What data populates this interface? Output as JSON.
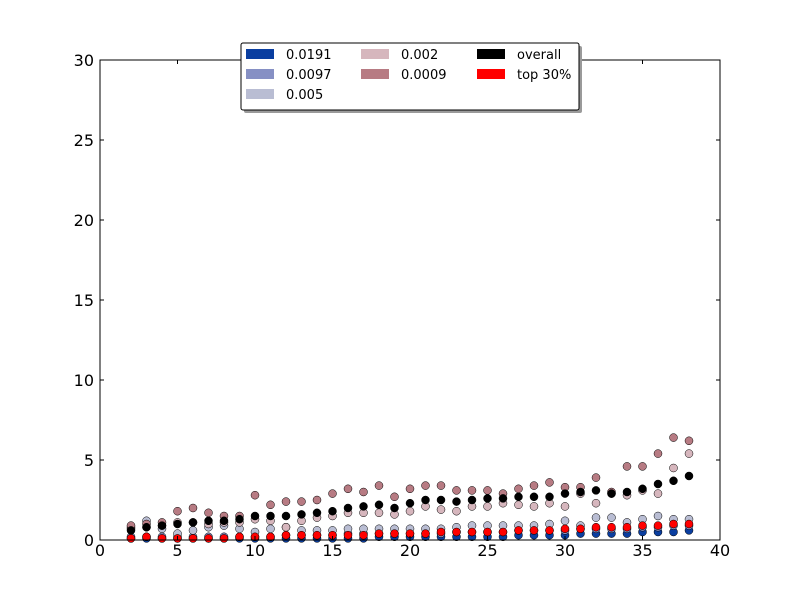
{
  "chart_data": {
    "type": "scatter",
    "title": "",
    "xlabel": "",
    "ylabel": "",
    "xlim": [
      0,
      40
    ],
    "ylim": [
      0,
      30
    ],
    "x_ticks": [
      "0",
      "5",
      "10",
      "15",
      "20",
      "25",
      "30",
      "35",
      "40"
    ],
    "y_ticks": [
      "0",
      "5",
      "10",
      "15",
      "20",
      "25",
      "30"
    ],
    "grid": false,
    "legend_position": "top-center",
    "x": [
      2,
      3,
      4,
      5,
      6,
      7,
      8,
      9,
      10,
      11,
      12,
      13,
      14,
      15,
      16,
      17,
      18,
      19,
      20,
      21,
      22,
      23,
      24,
      25,
      26,
      27,
      28,
      29,
      30,
      31,
      32,
      33,
      34,
      35,
      36,
      37,
      38
    ],
    "series": [
      {
        "name": "0.0191",
        "color": "#0a3ea0",
        "values": [
          0.1,
          0.1,
          0.1,
          0.1,
          0.1,
          0.1,
          0.1,
          0.1,
          0.1,
          0.1,
          0.1,
          0.1,
          0.1,
          0.1,
          0.1,
          0.1,
          0.2,
          0.2,
          0.2,
          0.2,
          0.2,
          0.2,
          0.2,
          0.2,
          0.2,
          0.3,
          0.3,
          0.3,
          0.3,
          0.4,
          0.4,
          0.4,
          0.4,
          0.5,
          0.5,
          0.5,
          0.6
        ]
      },
      {
        "name": "0.0097",
        "color": "#8690c4",
        "values": [
          0.2,
          0.2,
          0.2,
          0.2,
          0.2,
          0.2,
          0.2,
          0.2,
          0.2,
          0.2,
          0.3,
          0.3,
          0.3,
          0.3,
          0.4,
          0.4,
          0.4,
          0.4,
          0.4,
          0.4,
          0.4,
          0.5,
          0.5,
          0.5,
          0.5,
          0.6,
          0.6,
          0.6,
          0.6,
          0.7,
          0.7,
          0.7,
          0.7,
          0.8,
          0.8,
          0.9,
          0.9
        ]
      },
      {
        "name": "0.005",
        "color": "#b9bdd3",
        "values": [
          0.8,
          1.2,
          0.7,
          0.4,
          0.6,
          0.8,
          0.9,
          0.7,
          0.5,
          0.7,
          0.8,
          0.6,
          0.6,
          0.6,
          0.7,
          0.7,
          0.7,
          0.7,
          0.7,
          0.7,
          0.7,
          0.8,
          0.9,
          0.9,
          0.9,
          0.9,
          0.9,
          1.0,
          1.2,
          0.9,
          1.4,
          1.4,
          1.1,
          1.3,
          1.5,
          1.3,
          1.3
        ]
      },
      {
        "name": "0.002",
        "color": "#d6b6bd",
        "values": [
          0.7,
          0.8,
          0.9,
          1.1,
          1.1,
          1.0,
          1.1,
          1.1,
          1.3,
          1.2,
          0.8,
          1.2,
          1.4,
          1.5,
          1.7,
          1.7,
          1.7,
          1.6,
          1.8,
          2.1,
          1.9,
          1.8,
          2.1,
          2.1,
          2.3,
          2.2,
          2.1,
          2.3,
          2.1,
          2.9,
          2.3,
          2.9,
          2.8,
          3.1,
          2.9,
          4.5,
          5.4
        ]
      },
      {
        "name": "0.0009",
        "color": "#b77b83",
        "values": [
          0.9,
          1.0,
          1.1,
          1.8,
          2.0,
          1.7,
          1.5,
          1.5,
          2.8,
          2.2,
          2.4,
          2.4,
          2.5,
          2.9,
          3.2,
          3.0,
          3.4,
          2.7,
          3.2,
          3.4,
          3.4,
          3.1,
          3.1,
          3.1,
          2.9,
          3.2,
          3.4,
          3.6,
          3.3,
          3.3,
          3.9,
          3.0,
          4.6,
          4.6,
          5.4,
          6.4,
          6.2
        ]
      },
      {
        "name": "overall",
        "color": "#000000",
        "values": [
          0.6,
          0.8,
          0.9,
          1.0,
          1.1,
          1.2,
          1.2,
          1.3,
          1.5,
          1.5,
          1.5,
          1.6,
          1.7,
          1.8,
          2.0,
          2.1,
          2.2,
          2.0,
          2.3,
          2.5,
          2.5,
          2.4,
          2.5,
          2.6,
          2.6,
          2.7,
          2.7,
          2.7,
          2.9,
          3.0,
          3.1,
          2.9,
          3.0,
          3.2,
          3.5,
          3.7,
          4.0
        ]
      },
      {
        "name": "top 30%",
        "color": "#ff0000",
        "values": [
          0.1,
          0.2,
          0.1,
          0.1,
          0.1,
          0.1,
          0.1,
          0.2,
          0.2,
          0.2,
          0.3,
          0.3,
          0.3,
          0.3,
          0.3,
          0.3,
          0.4,
          0.4,
          0.4,
          0.4,
          0.5,
          0.5,
          0.5,
          0.5,
          0.5,
          0.6,
          0.6,
          0.6,
          0.7,
          0.7,
          0.8,
          0.8,
          0.8,
          0.9,
          0.9,
          1.0,
          1.0
        ]
      }
    ],
    "legend_order": [
      "0.0191",
      "0.0097",
      "0.005",
      "0.002",
      "0.0009",
      "overall",
      "top 30%"
    ]
  }
}
